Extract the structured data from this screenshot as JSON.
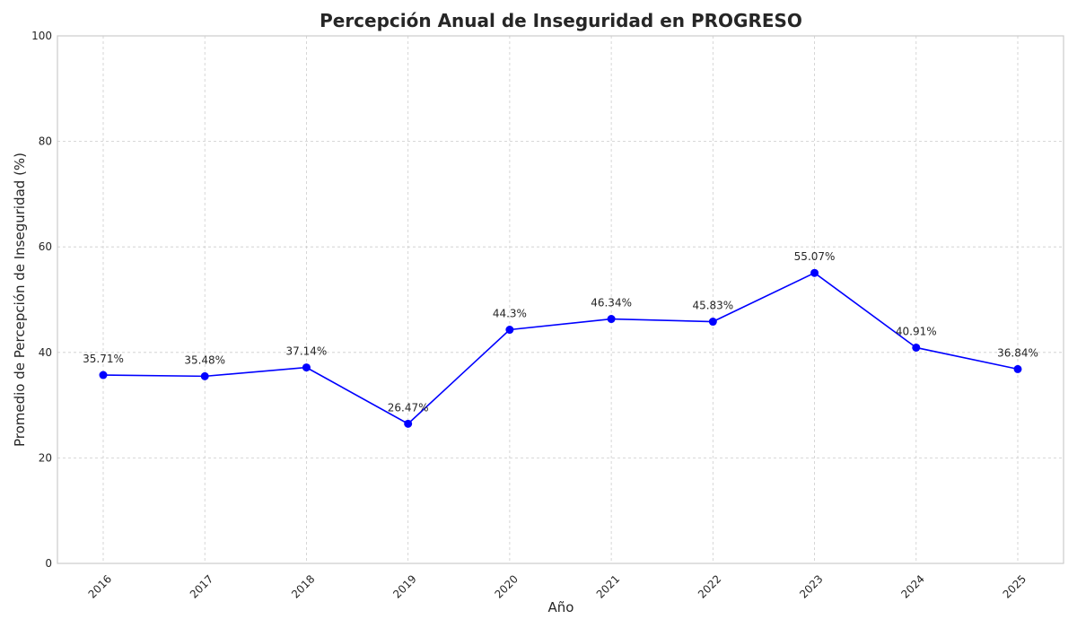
{
  "chart_data": {
    "type": "line",
    "title": "Percepción Anual de Inseguridad en PROGRESO",
    "xlabel": "Año",
    "ylabel": "Promedio de Percepción de Inseguridad (%)",
    "categories": [
      "2016",
      "2017",
      "2018",
      "2019",
      "2020",
      "2021",
      "2022",
      "2023",
      "2024",
      "2025"
    ],
    "series": [
      {
        "values": [
          35.71,
          35.48,
          37.14,
          26.47,
          44.3,
          46.34,
          45.83,
          55.07,
          40.91,
          36.84
        ],
        "labels": [
          "35.71%",
          "35.48%",
          "37.14%",
          "26.47%",
          "44.3%",
          "46.34%",
          "45.83%",
          "55.07%",
          "40.91%",
          "36.84%"
        ],
        "color": "#0000ff",
        "marker": "circle"
      }
    ],
    "ylim": [
      0,
      100
    ],
    "yticks": [
      "0",
      "20",
      "40",
      "60",
      "80",
      "100"
    ],
    "grid": true,
    "x_tick_rotation": "45deg"
  }
}
